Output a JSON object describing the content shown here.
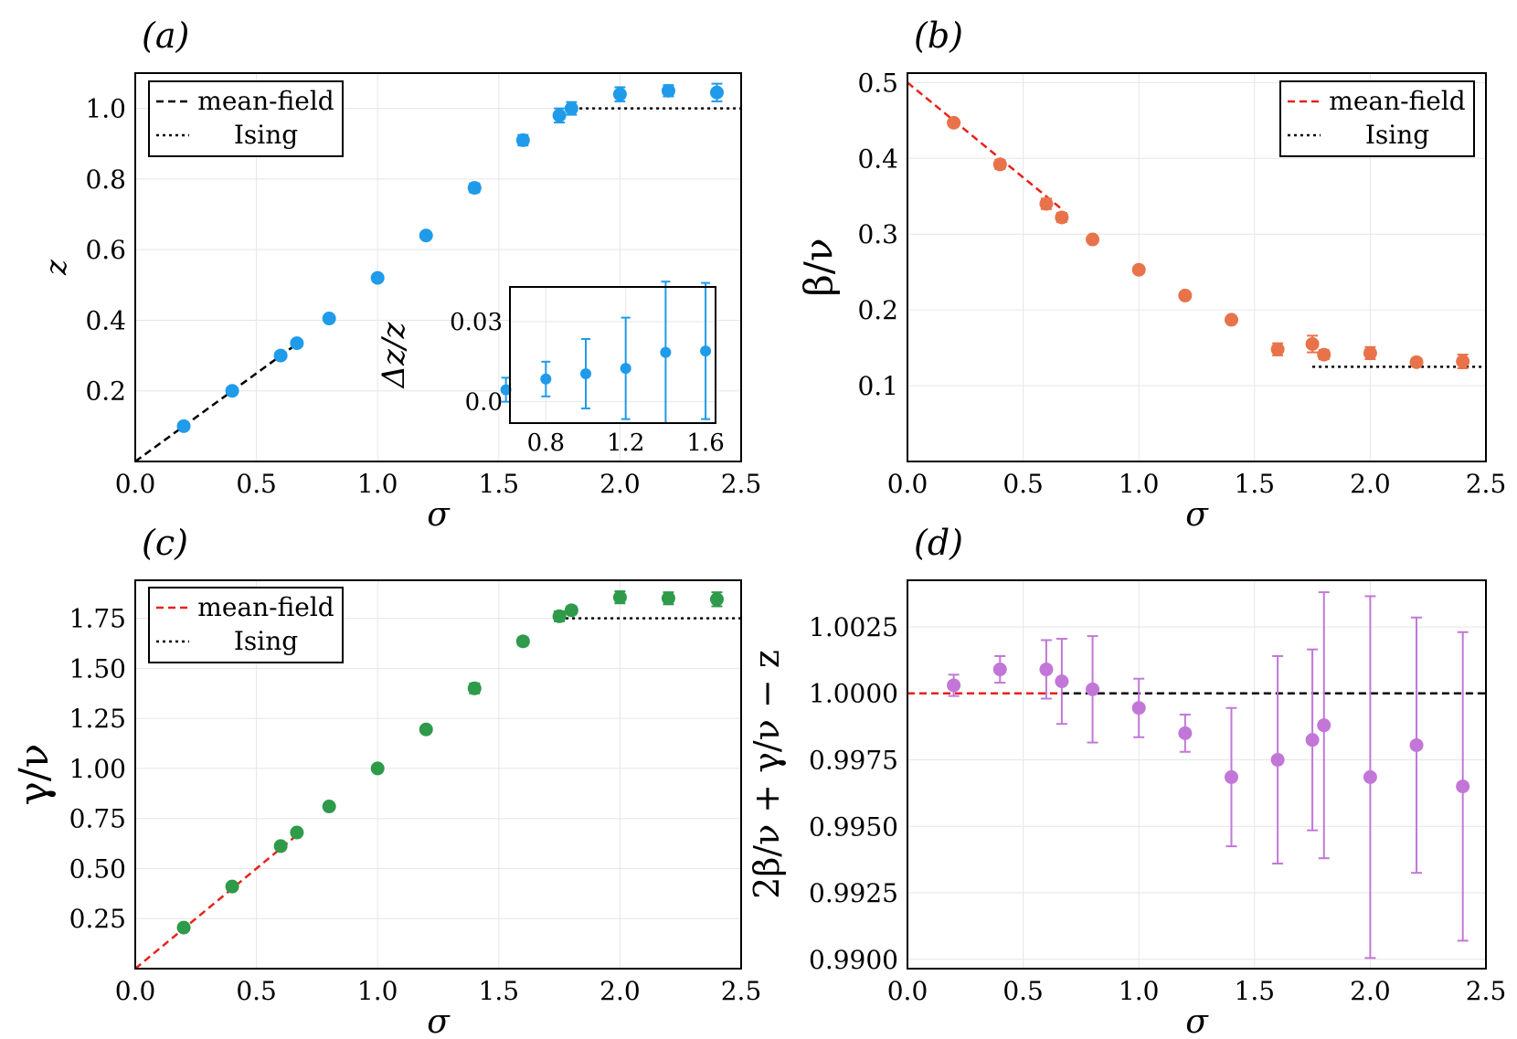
{
  "chart_data": [
    {
      "id": "a",
      "type": "scatter",
      "panel_label": "(a)",
      "xlabel": "σ",
      "ylabel": "z",
      "xlim": [
        0,
        2.5
      ],
      "ylim": [
        0,
        1.1
      ],
      "xticks": [
        "0.0",
        "0.5",
        "1.0",
        "1.5",
        "2.0",
        "2.5"
      ],
      "yticks": [
        "0.2",
        "0.4",
        "0.6",
        "0.8",
        "1.0"
      ],
      "grid": true,
      "legend": {
        "position": "top-left",
        "entries": [
          "mean-field",
          "Ising"
        ]
      },
      "color": "#1f9bea",
      "x": [
        0.2,
        0.4,
        0.6,
        0.667,
        0.8,
        1.0,
        1.2,
        1.4,
        1.6,
        1.75,
        1.8,
        2.0,
        2.2,
        2.4
      ],
      "y": [
        0.1,
        0.2,
        0.3,
        0.335,
        0.405,
        0.52,
        0.64,
        0.775,
        0.91,
        0.98,
        1.0,
        1.04,
        1.05,
        1.045
      ],
      "yerr": [
        0.003,
        0.003,
        0.004,
        0.005,
        0.004,
        0.006,
        0.008,
        0.013,
        0.015,
        0.02,
        0.018,
        0.02,
        0.016,
        0.025
      ],
      "lines": [
        {
          "legend": "mean-field",
          "style": "dashed",
          "color": "#000000",
          "x": [
            0,
            0.667
          ],
          "y": [
            0,
            0.333
          ]
        },
        {
          "legend": "Ising",
          "style": "dotted",
          "color": "#000000",
          "x": [
            1.833,
            2.5
          ],
          "y": [
            1.0,
            1.0
          ]
        }
      ],
      "inset": {
        "xlabel": "σ",
        "ylabel": "Δz/z",
        "xlim": [
          0.62,
          1.65
        ],
        "ylim": [
          -0.008,
          0.043
        ],
        "xticks": [
          "0.8",
          "1.2",
          "1.6"
        ],
        "yticks": [
          "0.0",
          "0.03"
        ],
        "x": [
          0.6,
          0.8,
          1.0,
          1.2,
          1.4,
          1.6
        ],
        "y": [
          0.0045,
          0.0085,
          0.0105,
          0.0125,
          0.0185,
          0.019
        ],
        "yerr": [
          0.0045,
          0.0065,
          0.013,
          0.019,
          0.0265,
          0.0255
        ]
      }
    },
    {
      "id": "b",
      "type": "scatter",
      "panel_label": "(b)",
      "xlabel": "σ",
      "ylabel": "β/ν",
      "xlim": [
        0,
        2.5
      ],
      "ylim": [
        0,
        0.5125
      ],
      "xticks": [
        "0.0",
        "0.5",
        "1.0",
        "1.5",
        "2.0",
        "2.5"
      ],
      "yticks": [
        "0.1",
        "0.2",
        "0.3",
        "0.4",
        "0.5"
      ],
      "grid": true,
      "legend": {
        "position": "top-right",
        "entries": [
          "mean-field",
          "Ising"
        ]
      },
      "color": "#e8734a",
      "x": [
        0.2,
        0.4,
        0.6,
        0.667,
        0.8,
        1.0,
        1.2,
        1.4,
        1.6,
        1.75,
        1.8,
        2.0,
        2.2,
        2.4
      ],
      "y": [
        0.447,
        0.392,
        0.34,
        0.322,
        0.293,
        0.253,
        0.219,
        0.187,
        0.148,
        0.155,
        0.141,
        0.143,
        0.131,
        0.132
      ],
      "yerr": [
        0.004,
        0.006,
        0.007,
        0.006,
        0.004,
        0.004,
        0.003,
        0.003,
        0.008,
        0.011,
        0.006,
        0.008,
        0.005,
        0.009
      ],
      "lines": [
        {
          "legend": "mean-field",
          "style": "dashed",
          "color": "#e8221a",
          "x": [
            0,
            0.667
          ],
          "y": [
            0.5,
            0.333
          ]
        },
        {
          "legend": "Ising",
          "style": "dotted",
          "color": "#000000",
          "x": [
            1.75,
            2.5
          ],
          "y": [
            0.125,
            0.125
          ]
        }
      ]
    },
    {
      "id": "c",
      "type": "scatter",
      "panel_label": "(c)",
      "xlabel": "σ",
      "ylabel": "γ/ν",
      "xlim": [
        0,
        2.5
      ],
      "ylim": [
        0,
        1.94
      ],
      "xticks": [
        "0.0",
        "0.5",
        "1.0",
        "1.5",
        "2.0",
        "2.5"
      ],
      "yticks": [
        "0.25",
        "0.50",
        "0.75",
        "1.00",
        "1.25",
        "1.50",
        "1.75"
      ],
      "grid": true,
      "legend": {
        "position": "top-left",
        "entries": [
          "mean-field",
          "Ising"
        ]
      },
      "color": "#2e9a4a",
      "x": [
        0.2,
        0.4,
        0.6,
        0.667,
        0.8,
        1.0,
        1.2,
        1.4,
        1.6,
        1.75,
        1.8,
        2.0,
        2.2,
        2.4
      ],
      "y": [
        0.205,
        0.41,
        0.612,
        0.68,
        0.81,
        1.0,
        1.195,
        1.4,
        1.635,
        1.76,
        1.79,
        1.855,
        1.85,
        1.845
      ],
      "yerr": [
        0.008,
        0.008,
        0.01,
        0.01,
        0.008,
        0.006,
        0.008,
        0.025,
        0.02,
        0.025,
        0.02,
        0.03,
        0.03,
        0.035
      ],
      "lines": [
        {
          "legend": "mean-field",
          "style": "dashed",
          "color": "#e8221a",
          "x": [
            0,
            0.667
          ],
          "y": [
            0,
            0.667
          ]
        },
        {
          "legend": "Ising",
          "style": "dotted",
          "color": "#000000",
          "x": [
            1.75,
            2.5
          ],
          "y": [
            1.75,
            1.75
          ]
        }
      ]
    },
    {
      "id": "d",
      "type": "scatter",
      "panel_label": "(d)",
      "xlabel": "σ",
      "ylabel": "2β/ν + γ/ν − z",
      "xlim": [
        0,
        2.5
      ],
      "ylim": [
        0.98965,
        1.00425
      ],
      "xticks": [
        "0.0",
        "0.5",
        "1.0",
        "1.5",
        "2.0",
        "2.5"
      ],
      "yticks": [
        "0.9900",
        "0.9925",
        "0.9950",
        "0.9975",
        "1.0000",
        "1.0025"
      ],
      "grid": true,
      "color": "#c277d8",
      "x": [
        0.2,
        0.4,
        0.6,
        0.667,
        0.8,
        1.0,
        1.2,
        1.4,
        1.6,
        1.75,
        1.8,
        2.0,
        2.2,
        2.4
      ],
      "y": [
        1.0003,
        1.0009,
        1.0009,
        1.00045,
        1.00015,
        0.99945,
        0.9985,
        0.99685,
        0.9975,
        0.99825,
        0.9988,
        0.99685,
        0.99805,
        0.9965
      ],
      "yerr": [
        0.0004,
        0.0005,
        0.0011,
        0.0016,
        0.002,
        0.0011,
        0.0007,
        0.0026,
        0.0039,
        0.0034,
        0.005,
        0.0068,
        0.0048,
        0.0058
      ],
      "lines": [
        {
          "style": "dashed",
          "color": "#e8221a",
          "x": [
            0,
            0.667
          ],
          "y": [
            1.0,
            1.0
          ]
        },
        {
          "style": "dashed",
          "color": "#000000",
          "x": [
            0.667,
            2.5
          ],
          "y": [
            1.0,
            1.0
          ]
        }
      ]
    }
  ]
}
